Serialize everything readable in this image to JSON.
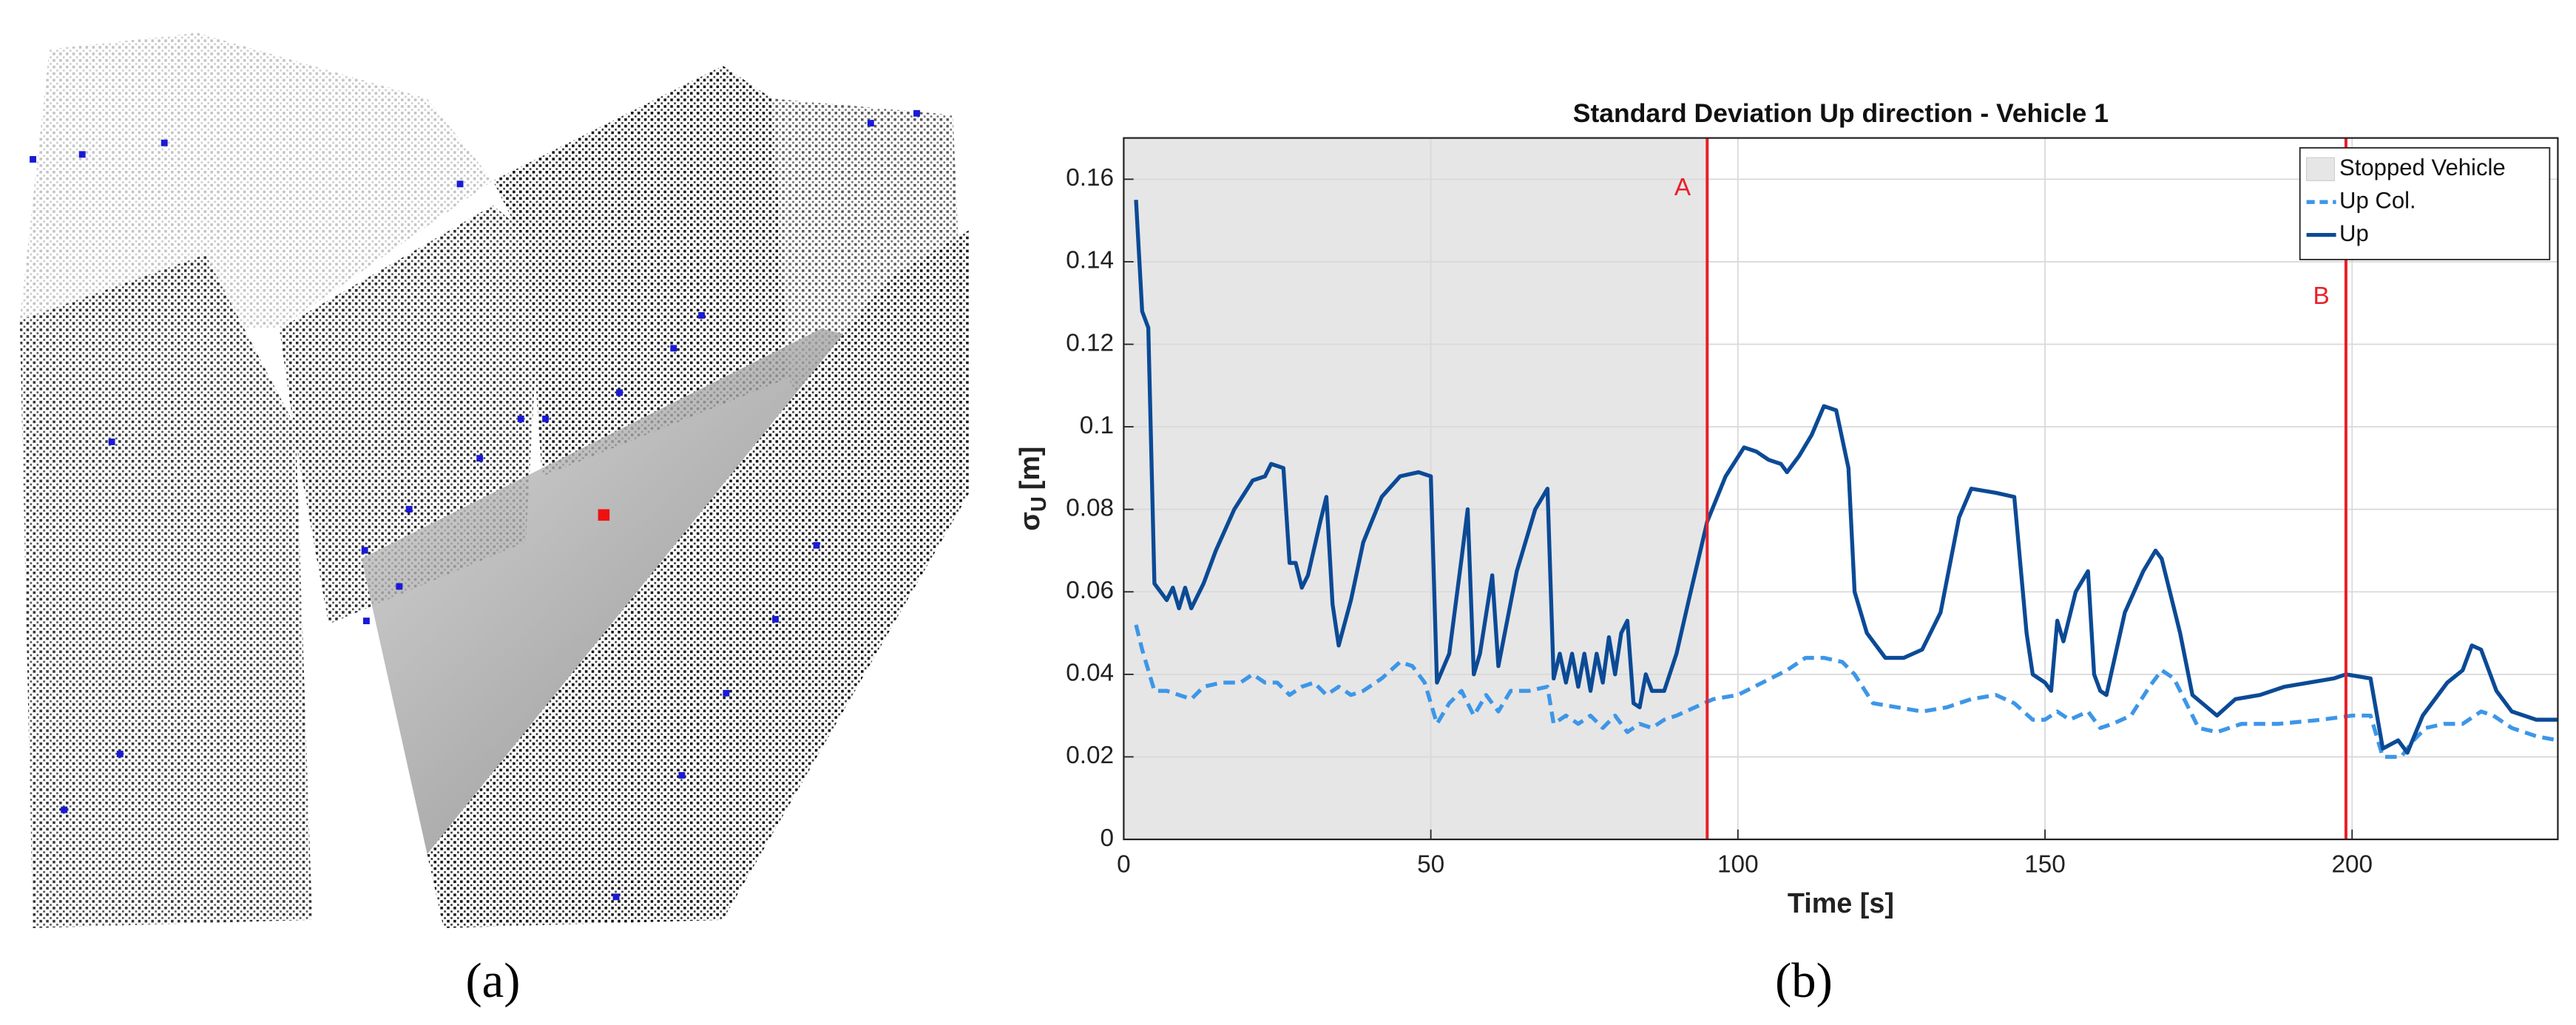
{
  "captions": {
    "a": "(a)",
    "b": "(b)"
  },
  "chart_data": {
    "type": "line",
    "title": "Standard Deviation Up direction - Vehicle 1",
    "x_label": "Time [s]",
    "y_label_parts": [
      "σ",
      "U",
      "[m]"
    ],
    "xlim": [
      0,
      233.5
    ],
    "ylim": [
      0,
      0.17
    ],
    "xticks": [
      0,
      50,
      100,
      150,
      200
    ],
    "yticks": [
      0,
      0.02,
      0.04,
      0.06,
      0.08,
      0.1,
      0.12,
      0.14,
      0.16
    ],
    "grid": true,
    "legend": "upper right",
    "shaded_region": {
      "label": "Stopped Vehicle",
      "x": [
        0,
        95
      ],
      "color": "#e6e6e6"
    },
    "vlines": [
      {
        "label": "A",
        "x": 95,
        "color": "#e8202a"
      },
      {
        "label": "B",
        "x": 199,
        "color": "#e8202a"
      }
    ],
    "series": [
      {
        "name": "Up Col.",
        "color": "#3d96e8",
        "dashed": true,
        "x": [
          2,
          3,
          4,
          5,
          7,
          9,
          11,
          13,
          16,
          19,
          21,
          23,
          25,
          27,
          29,
          31,
          33,
          35,
          37,
          39,
          42,
          45,
          47,
          49,
          51,
          53,
          55,
          57,
          59,
          61,
          63,
          66,
          69,
          70,
          72,
          74,
          76,
          78,
          80,
          82,
          84,
          86,
          88,
          90,
          93,
          96,
          100,
          104,
          108,
          111,
          114,
          117,
          119,
          122,
          126,
          130,
          134,
          138,
          142,
          145,
          148,
          150,
          152,
          154,
          157,
          159,
          161,
          164,
          167,
          169,
          171,
          173,
          175,
          178,
          182,
          188,
          195,
          200,
          203,
          205,
          208,
          210,
          212,
          215,
          218,
          221,
          223,
          226,
          230,
          233.5
        ],
        "values": [
          0.052,
          0.046,
          0.041,
          0.036,
          0.036,
          0.035,
          0.034,
          0.037,
          0.038,
          0.038,
          0.04,
          0.038,
          0.038,
          0.035,
          0.037,
          0.038,
          0.035,
          0.037,
          0.035,
          0.036,
          0.039,
          0.043,
          0.042,
          0.038,
          0.028,
          0.033,
          0.036,
          0.03,
          0.035,
          0.031,
          0.036,
          0.036,
          0.037,
          0.028,
          0.03,
          0.028,
          0.03,
          0.027,
          0.03,
          0.026,
          0.028,
          0.027,
          0.029,
          0.03,
          0.032,
          0.034,
          0.035,
          0.038,
          0.041,
          0.044,
          0.044,
          0.043,
          0.04,
          0.033,
          0.032,
          0.031,
          0.032,
          0.034,
          0.035,
          0.033,
          0.029,
          0.029,
          0.031,
          0.029,
          0.031,
          0.027,
          0.028,
          0.03,
          0.037,
          0.041,
          0.039,
          0.033,
          0.027,
          0.026,
          0.028,
          0.028,
          0.029,
          0.03,
          0.03,
          0.02,
          0.02,
          0.024,
          0.027,
          0.028,
          0.028,
          0.031,
          0.03,
          0.027,
          0.025,
          0.024
        ]
      },
      {
        "name": "Up",
        "color": "#0b4a96",
        "dashed": false,
        "x": [
          2,
          3,
          4,
          5,
          7,
          8,
          9,
          10,
          11,
          13,
          15,
          18,
          21,
          23,
          24,
          26,
          27,
          28,
          29,
          30,
          32,
          33,
          34,
          35,
          37,
          39,
          42,
          45,
          48,
          50,
          51,
          53,
          55,
          56,
          57,
          58,
          60,
          61,
          64,
          67,
          69,
          70,
          71,
          72,
          73,
          74,
          75,
          76,
          77,
          78,
          79,
          80,
          81,
          82,
          83,
          84,
          85,
          86,
          88,
          90,
          92,
          95,
          98,
          101,
          103,
          105,
          107,
          108,
          110,
          112,
          114,
          116,
          118,
          119,
          121,
          124,
          127,
          130,
          133,
          136,
          138,
          142,
          145,
          147,
          148,
          150,
          151,
          152,
          153,
          155,
          157,
          158,
          159,
          160,
          163,
          166,
          168,
          169,
          172,
          174,
          178,
          181,
          185,
          189,
          197,
          199,
          203,
          205,
          207.5,
          209,
          211.5,
          215.5,
          218,
          219.5,
          221,
          223.5,
          226,
          230,
          233.5
        ],
        "values": [
          0.155,
          0.128,
          0.124,
          0.062,
          0.058,
          0.061,
          0.056,
          0.061,
          0.056,
          0.062,
          0.07,
          0.08,
          0.087,
          0.088,
          0.091,
          0.09,
          0.067,
          0.067,
          0.061,
          0.064,
          0.077,
          0.083,
          0.057,
          0.047,
          0.058,
          0.072,
          0.083,
          0.088,
          0.089,
          0.088,
          0.038,
          0.045,
          0.068,
          0.08,
          0.04,
          0.045,
          0.064,
          0.042,
          0.065,
          0.08,
          0.085,
          0.039,
          0.045,
          0.038,
          0.045,
          0.037,
          0.045,
          0.036,
          0.045,
          0.038,
          0.049,
          0.04,
          0.05,
          0.053,
          0.033,
          0.032,
          0.04,
          0.036,
          0.036,
          0.045,
          0.058,
          0.077,
          0.088,
          0.095,
          0.094,
          0.092,
          0.091,
          0.089,
          0.093,
          0.098,
          0.105,
          0.104,
          0.09,
          0.06,
          0.05,
          0.044,
          0.044,
          0.046,
          0.055,
          0.078,
          0.085,
          0.084,
          0.083,
          0.05,
          0.04,
          0.038,
          0.036,
          0.053,
          0.048,
          0.06,
          0.065,
          0.04,
          0.036,
          0.035,
          0.055,
          0.065,
          0.07,
          0.068,
          0.05,
          0.035,
          0.03,
          0.034,
          0.035,
          0.037,
          0.039,
          0.04,
          0.039,
          0.022,
          0.024,
          0.021,
          0.03,
          0.038,
          0.041,
          0.047,
          0.046,
          0.036,
          0.031,
          0.029,
          0.029
        ]
      }
    ]
  }
}
